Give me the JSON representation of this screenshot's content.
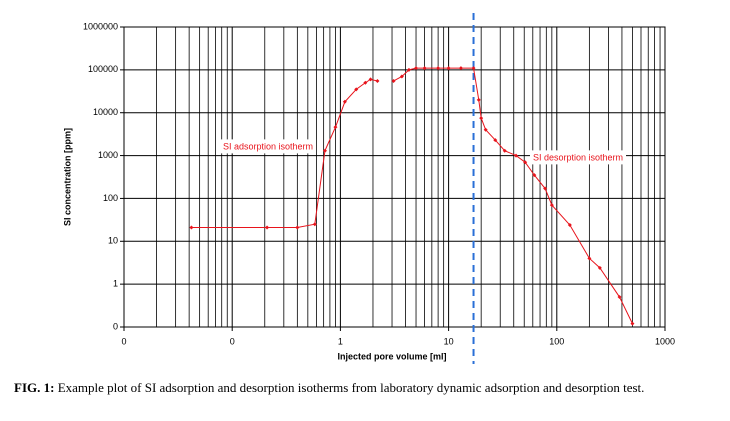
{
  "chart_data": {
    "type": "line",
    "x_label": "Injected pore volume [ml]",
    "y_label": "SI concentration [ppm]",
    "x_log": true,
    "y_log": true,
    "grid": true,
    "x_minor_grid": true,
    "xlim": [
      0.01,
      1000
    ],
    "xticks": [
      {
        "value": 0.01,
        "label": "0"
      },
      {
        "value": 0.1,
        "label": "0"
      },
      1,
      10,
      100,
      1000
    ],
    "ylim": [
      0.1,
      1000000
    ],
    "yticks": [
      {
        "value": 0.1,
        "label": "0"
      },
      1,
      10,
      100,
      1000,
      10000,
      100000,
      1000000
    ],
    "series": [
      {
        "color": "#e8141c",
        "x": [
          0.042,
          0.21,
          0.4,
          0.58,
          0.72,
          0.9,
          1.1,
          1.4,
          1.7,
          1.9,
          2.2,
          null,
          3.1,
          3.7,
          4.3,
          5,
          6,
          8,
          10,
          13,
          17,
          19,
          20,
          22,
          27,
          33,
          42,
          51,
          62,
          78,
          90,
          132,
          200,
          250,
          380,
          500
        ],
        "values": [
          21,
          21,
          21,
          25,
          1300,
          4600,
          18000,
          35000,
          50000,
          60000,
          55000,
          null,
          55000,
          70000,
          100000,
          110000,
          110000,
          110000,
          110000,
          110000,
          110000,
          20000,
          7500,
          4000,
          2300,
          1300,
          1000,
          700,
          350,
          170,
          70,
          24,
          4,
          2.4,
          0.5,
          0.12
        ]
      }
    ],
    "reference_line": {
      "x": 17,
      "color": "#2a6fd6",
      "style": "dashed"
    },
    "annotations": [
      "SI adsorption isotherm",
      "SI desorption isotherm"
    ]
  },
  "caption": {
    "label": "FIG. 1:",
    "text": "Example plot of SI adsorption and desorption isotherms from laboratory dynamic adsorption and desorption test."
  }
}
